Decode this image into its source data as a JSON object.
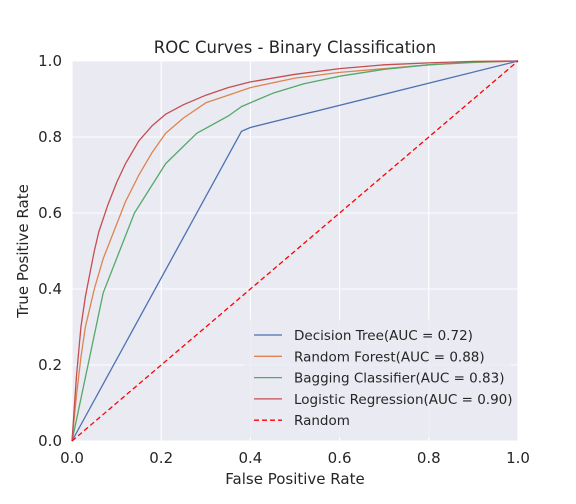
{
  "chart_data": {
    "type": "line",
    "title": "ROC Curves - Binary Classification",
    "xlabel": "False Positive Rate",
    "ylabel": "True Positive Rate",
    "xlim": [
      0.0,
      1.0
    ],
    "ylim": [
      0.0,
      1.0
    ],
    "xticks": [
      "0.0",
      "0.2",
      "0.4",
      "0.6",
      "0.8",
      "1.0"
    ],
    "yticks": [
      "0.0",
      "0.2",
      "0.4",
      "0.6",
      "0.8",
      "1.0"
    ],
    "grid": true,
    "legend_position": "lower-right",
    "series": [
      {
        "name": "Decision Tree(AUC = 0.72)",
        "color": "#4c72b0",
        "dash": false,
        "x": [
          0.0,
          0.38,
          0.39,
          0.4,
          1.0
        ],
        "y": [
          0.0,
          0.815,
          0.82,
          0.825,
          1.0
        ]
      },
      {
        "name": "Random Forest(AUC = 0.88)",
        "color": "#dd8452",
        "dash": false,
        "x": [
          0.0,
          0.01,
          0.02,
          0.03,
          0.05,
          0.07,
          0.1,
          0.12,
          0.15,
          0.18,
          0.21,
          0.25,
          0.3,
          0.35,
          0.4,
          0.5,
          0.6,
          0.7,
          0.8,
          0.9,
          1.0
        ],
        "y": [
          0.0,
          0.12,
          0.22,
          0.3,
          0.4,
          0.48,
          0.57,
          0.63,
          0.7,
          0.76,
          0.81,
          0.85,
          0.89,
          0.91,
          0.93,
          0.955,
          0.97,
          0.98,
          0.99,
          0.996,
          1.0
        ]
      },
      {
        "name": "Bagging Classifier(AUC = 0.83)",
        "color": "#55a868",
        "dash": false,
        "x": [
          0.0,
          0.07,
          0.14,
          0.21,
          0.28,
          0.35,
          0.38,
          0.45,
          0.52,
          0.6,
          0.7,
          0.8,
          0.9,
          1.0
        ],
        "y": [
          0.0,
          0.39,
          0.6,
          0.73,
          0.81,
          0.855,
          0.88,
          0.915,
          0.94,
          0.96,
          0.978,
          0.99,
          0.997,
          1.0
        ]
      },
      {
        "name": "Logistic Regression(AUC = 0.90)",
        "color": "#c44e52",
        "dash": false,
        "x": [
          0.0,
          0.01,
          0.02,
          0.03,
          0.04,
          0.05,
          0.06,
          0.08,
          0.1,
          0.12,
          0.15,
          0.18,
          0.21,
          0.25,
          0.3,
          0.35,
          0.4,
          0.5,
          0.6,
          0.7,
          0.8,
          0.9,
          1.0
        ],
        "y": [
          0.0,
          0.17,
          0.3,
          0.38,
          0.44,
          0.5,
          0.55,
          0.62,
          0.68,
          0.73,
          0.79,
          0.83,
          0.86,
          0.885,
          0.91,
          0.93,
          0.945,
          0.965,
          0.98,
          0.99,
          0.995,
          0.999,
          1.0
        ]
      },
      {
        "name": "Random",
        "color": "#ff0000",
        "dash": true,
        "x": [
          0.0,
          1.0
        ],
        "y": [
          0.0,
          1.0
        ]
      }
    ]
  }
}
